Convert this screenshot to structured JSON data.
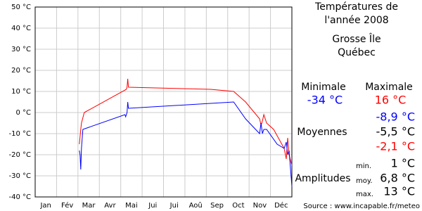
{
  "chart_data": {
    "type": "line",
    "categories": [
      "Jan",
      "Fév",
      "Mar",
      "Avr",
      "Mai",
      "Jui",
      "Jui",
      "Aoû",
      "Sep",
      "Oct",
      "Nov",
      "Déc"
    ],
    "xlim": [
      0,
      366
    ],
    "ylim": [
      -40,
      50
    ],
    "yticks": [
      {
        "value": 50,
        "label": "50 °C"
      },
      {
        "value": 40,
        "label": "40 °C"
      },
      {
        "value": 30,
        "label": "30 °C"
      },
      {
        "value": 20,
        "label": "20 °C"
      },
      {
        "value": 10,
        "label": "10 °C"
      },
      {
        "value": 0,
        "label": "0 °C"
      },
      {
        "value": -10,
        "label": "-10 °C"
      },
      {
        "value": -20,
        "label": "-20 °C"
      },
      {
        "value": -30,
        "label": "-30 °C"
      },
      {
        "value": -40,
        "label": "-40 °C"
      }
    ],
    "grid": true,
    "series": [
      {
        "name": "Maximale",
        "color": "#ff0000",
        "x": [
          63,
          65,
          66,
          70,
          130,
          131,
          132,
          133,
          250,
          283,
          300,
          320,
          322,
          324,
          326,
          330,
          340,
          355,
          358,
          360,
          362,
          366
        ],
        "values": [
          -15,
          -8,
          -5,
          0,
          11,
          12,
          16,
          12,
          11,
          10,
          5,
          -3,
          -6,
          -4,
          -1,
          -5,
          -8,
          -17,
          -22,
          -12,
          -20,
          -25
        ]
      },
      {
        "name": "Minimale",
        "color": "#0000ff",
        "x": [
          63,
          64,
          65,
          66,
          68,
          128,
          129,
          131,
          132,
          133,
          283,
          300,
          320,
          322,
          324,
          326,
          330,
          345,
          355,
          358,
          360,
          362,
          366
        ],
        "values": [
          -18,
          -20,
          -27,
          -17,
          -8,
          -1,
          -2,
          0,
          5,
          2,
          5,
          -3,
          -10,
          -5,
          -10,
          -8,
          -8,
          -15,
          -17,
          -14,
          -20,
          -18,
          -35
        ]
      }
    ]
  },
  "panel": {
    "title": [
      "Températures de",
      "l'année 2008"
    ],
    "place": [
      "Grosse Île",
      "Québec"
    ],
    "min_head": "Minimale",
    "max_head": "Maximale",
    "min_value": "-34 °C",
    "max_value": "16 °C",
    "avg_label": "Moyennes",
    "avg_min": "-8,9 °C",
    "avg_all": "-5,5 °C",
    "avg_max": "-2,1 °C",
    "amp_label": "Amplitudes",
    "amp_min_label": "min.",
    "amp_min": "1 °C",
    "amp_avg_label": "moy.",
    "amp_avg": "6,8 °C",
    "amp_max_label": "max.",
    "amp_max": "13 °C",
    "source": "Source : www.incapable.fr/meteo"
  }
}
